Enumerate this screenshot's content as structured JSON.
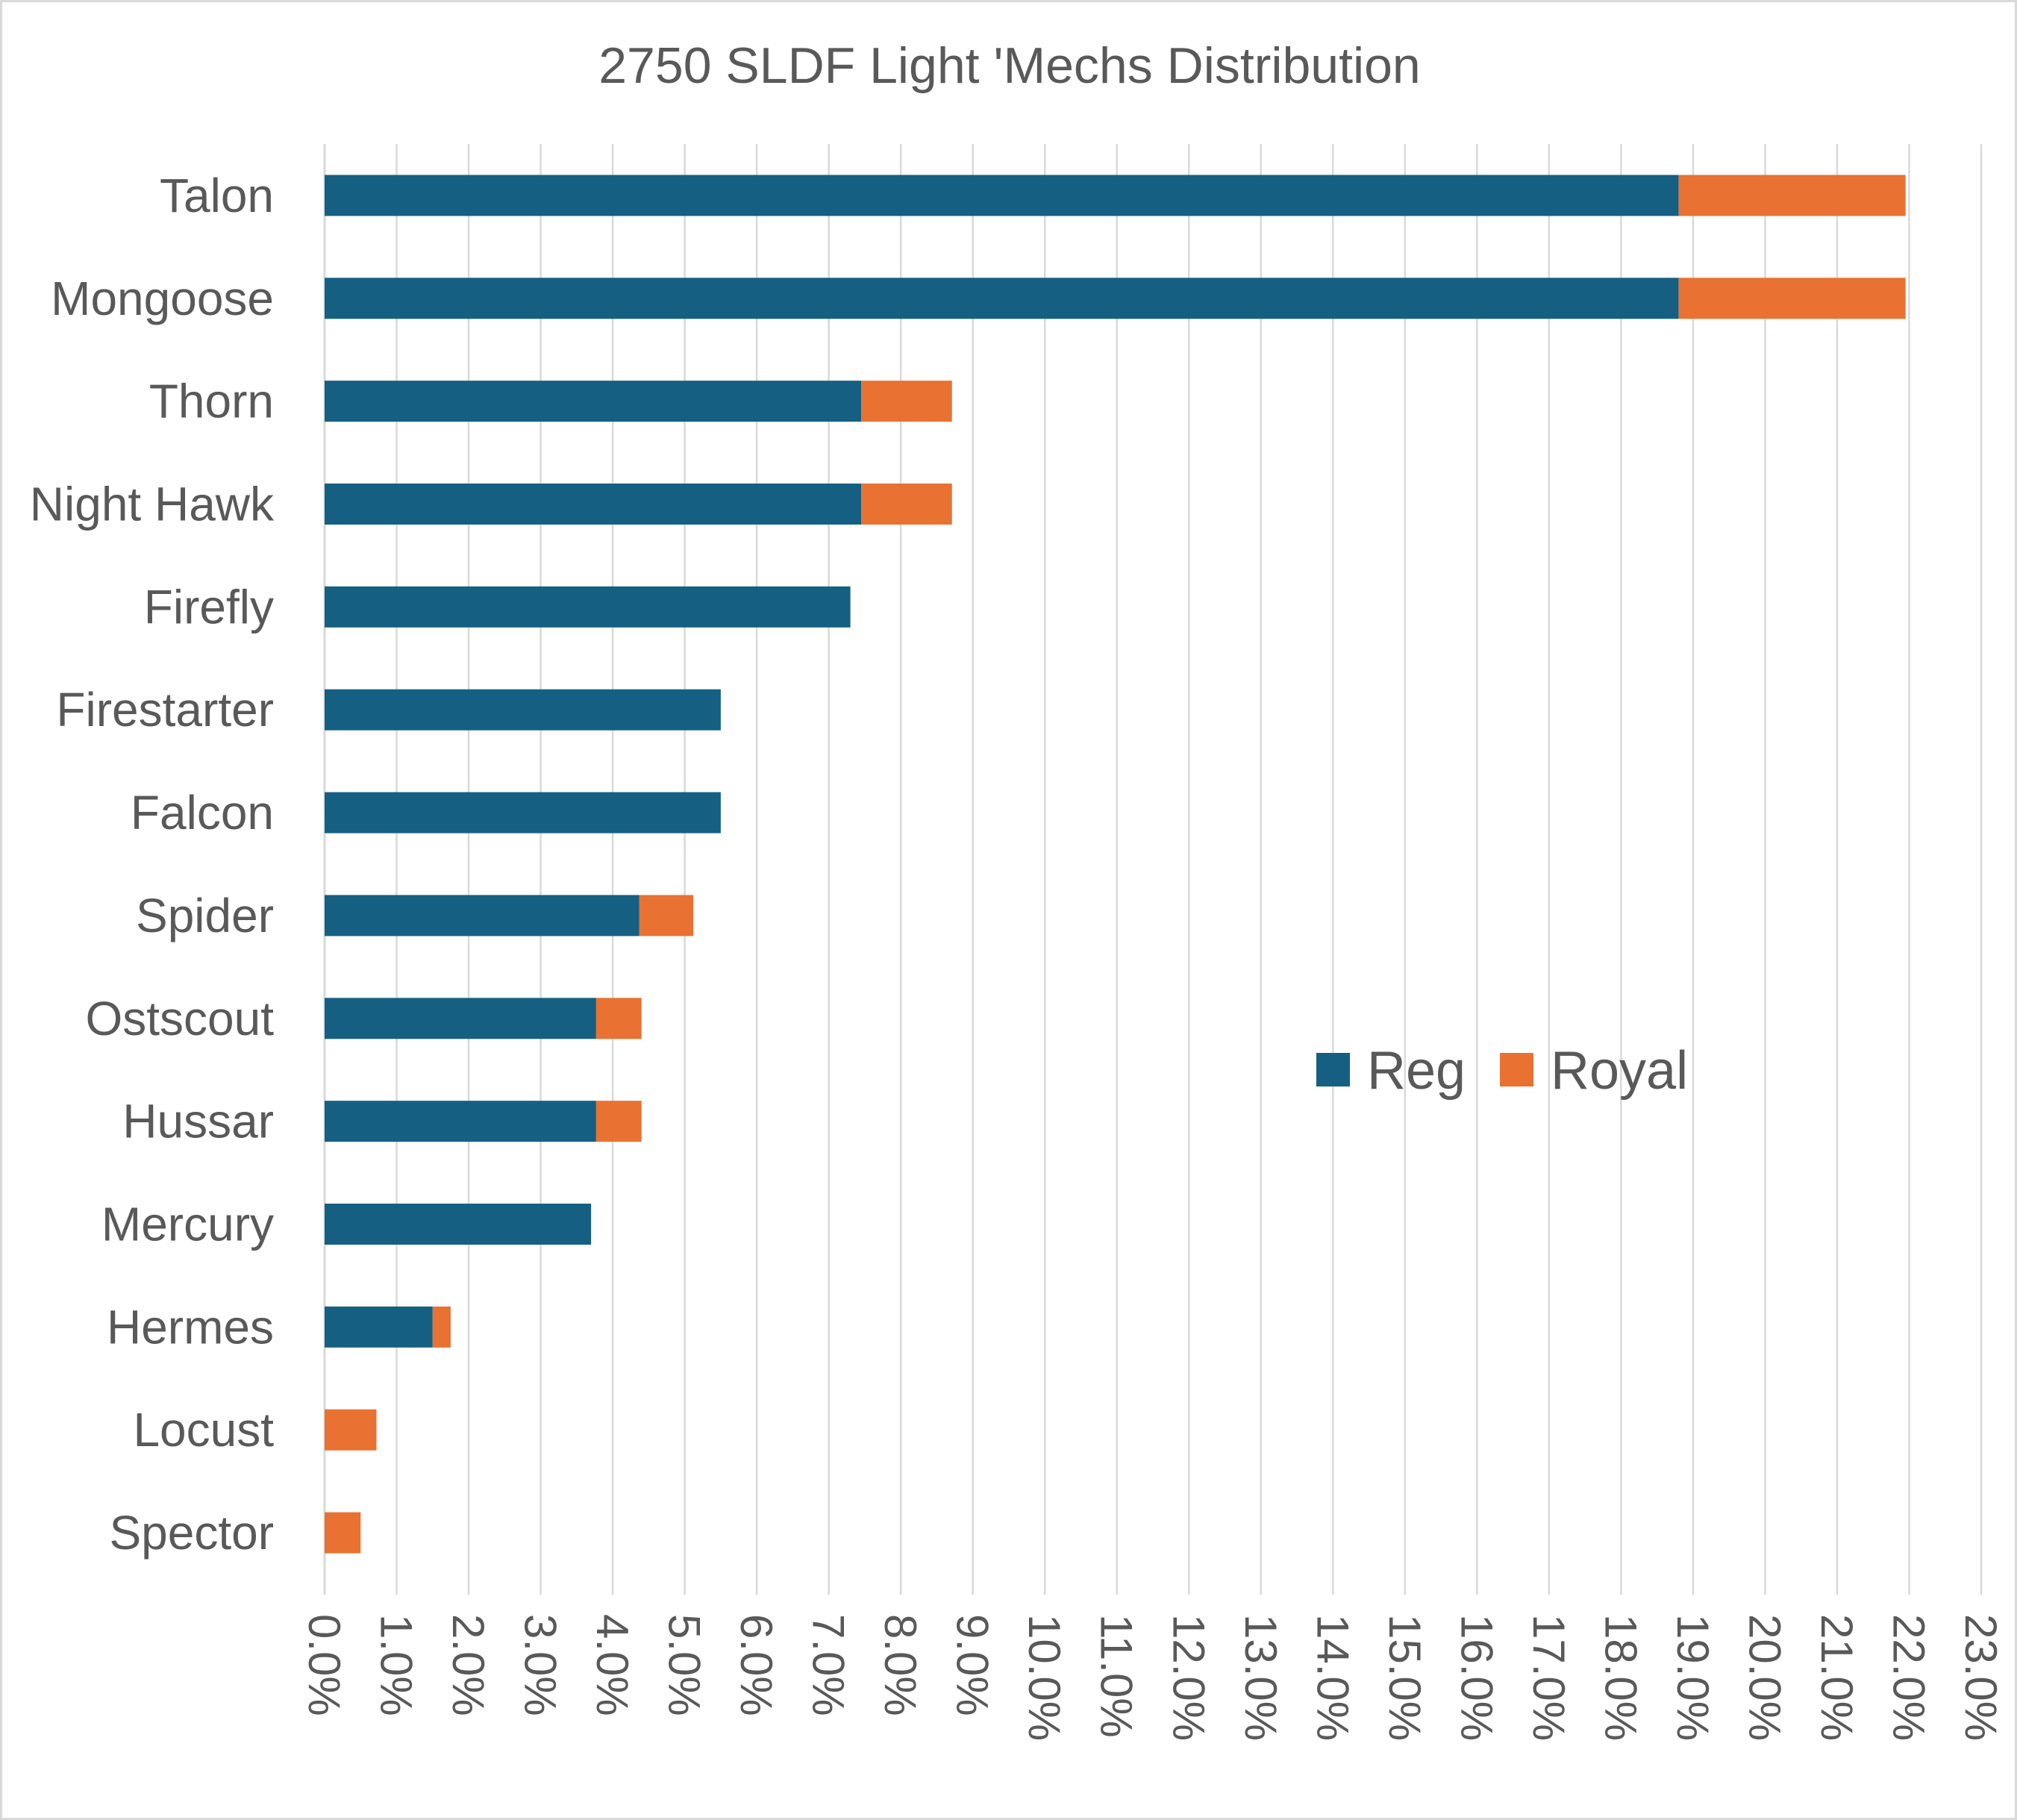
{
  "chart_data": {
    "type": "bar",
    "orientation": "horizontal",
    "stacked": true,
    "title": "2750 SLDF Light 'Mechs Distribution",
    "xlabel": "",
    "ylabel": "",
    "categories": [
      "Talon",
      "Mongoose",
      "Thorn",
      "Night Hawk",
      "Firefly",
      "Firestarter",
      "Falcon",
      "Spider",
      "Ostscout",
      "Hussar",
      "Mercury",
      "Hermes",
      "Locust",
      "Spector"
    ],
    "series": [
      {
        "name": "Reg",
        "color": "#156082",
        "values": [
          18.8,
          18.8,
          7.45,
          7.45,
          7.3,
          5.5,
          5.5,
          4.37,
          3.77,
          3.77,
          3.7,
          1.5,
          0,
          0
        ]
      },
      {
        "name": "Royal",
        "color": "#e97132",
        "values": [
          3.15,
          3.15,
          1.26,
          1.26,
          0,
          0,
          0,
          0.75,
          0.63,
          0.63,
          0,
          0.25,
          0.72,
          0.5
        ]
      }
    ],
    "xlim": [
      0,
      23
    ],
    "xticks": [
      0,
      1,
      2,
      3,
      4,
      5,
      6,
      7,
      8,
      9,
      10,
      11,
      12,
      13,
      14,
      15,
      16,
      17,
      18,
      19,
      20,
      21,
      22,
      23
    ],
    "tick_labels": [
      "0.0%",
      "1.0%",
      "2.0%",
      "3.0%",
      "4.0%",
      "5.0%",
      "6.0%",
      "7.0%",
      "8.0%",
      "9.0%",
      "10.0%",
      "11.0%",
      "12.0%",
      "13.0%",
      "14.0%",
      "15.0%",
      "16.0%",
      "17.0%",
      "18.0%",
      "19.0%",
      "20.0%",
      "21.0%",
      "22.0%",
      "23.0%"
    ],
    "grid": true,
    "legend": {
      "placement": "inside-right",
      "entries": [
        "Reg",
        "Royal"
      ]
    }
  }
}
